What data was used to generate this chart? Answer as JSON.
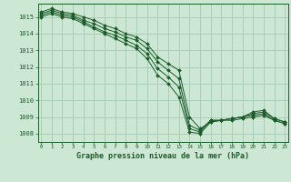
{
  "title": "Graphe pression niveau de la mer (hPa)",
  "xlabel_hours": [
    0,
    1,
    2,
    3,
    4,
    5,
    6,
    7,
    8,
    9,
    10,
    11,
    12,
    13,
    14,
    15,
    16,
    17,
    18,
    19,
    20,
    21,
    22,
    23
  ],
  "ylim": [
    1007.5,
    1015.8
  ],
  "xlim": [
    -0.3,
    23.3
  ],
  "yticks": [
    1008,
    1009,
    1010,
    1011,
    1012,
    1013,
    1014,
    1015
  ],
  "background_color": "#cce8d4",
  "grid_color": "#a8c8b8",
  "line_color": "#1a5c28",
  "series": [
    [
      1015.3,
      1015.5,
      1015.3,
      1015.2,
      1015.0,
      1014.8,
      1014.5,
      1014.3,
      1014.0,
      1013.8,
      1013.4,
      1012.6,
      1012.2,
      1011.8,
      1009.0,
      1008.3,
      1008.7,
      1008.8,
      1008.9,
      1009.0,
      1009.3,
      1009.4,
      1008.9,
      1008.7
    ],
    [
      1015.2,
      1015.4,
      1015.2,
      1015.1,
      1014.8,
      1014.6,
      1014.3,
      1014.1,
      1013.8,
      1013.6,
      1013.1,
      1012.3,
      1011.8,
      1011.3,
      1008.5,
      1008.2,
      1008.8,
      1008.8,
      1008.9,
      1009.0,
      1009.2,
      1009.3,
      1008.9,
      1008.7
    ],
    [
      1015.1,
      1015.3,
      1015.1,
      1015.0,
      1014.7,
      1014.4,
      1014.1,
      1013.9,
      1013.6,
      1013.3,
      1012.8,
      1011.9,
      1011.4,
      1010.8,
      1008.3,
      1008.1,
      1008.8,
      1008.8,
      1008.9,
      1009.0,
      1009.1,
      1009.2,
      1008.8,
      1008.6
    ],
    [
      1015.0,
      1015.2,
      1015.0,
      1014.9,
      1014.6,
      1014.3,
      1014.0,
      1013.7,
      1013.4,
      1013.1,
      1012.5,
      1011.5,
      1011.0,
      1010.2,
      1008.1,
      1008.0,
      1008.7,
      1008.8,
      1008.8,
      1008.9,
      1009.0,
      1009.1,
      1008.8,
      1008.6
    ]
  ]
}
